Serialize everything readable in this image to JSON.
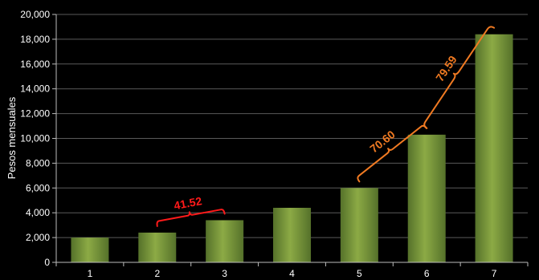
{
  "chart_data": {
    "type": "bar",
    "categories": [
      "1",
      "2",
      "3",
      "4",
      "5",
      "6",
      "7"
    ],
    "values": [
      2000,
      2400,
      3400,
      4400,
      6000,
      10300,
      18400
    ],
    "ylabel": "Pesos  mensuales",
    "xlabel": "",
    "ylim": [
      0,
      20000
    ],
    "yticks": [
      "0",
      "2,000",
      "4,000",
      "6,000",
      "8,000",
      "10,000",
      "12,000",
      "14,000",
      "16,000",
      "18,000",
      "20,000"
    ],
    "grid": true,
    "legend": "none",
    "colors": {
      "background": "#000000",
      "bar_light": "#8caa45",
      "bar_dark": "#55712a",
      "grid": "#5a5a5a",
      "text": "#ffffff"
    },
    "annotations": [
      {
        "label": "41.52",
        "from": "2",
        "to": "3",
        "color": "#ff1a1a"
      },
      {
        "label": "70.60",
        "from": "5",
        "to": "6",
        "color": "#f07a22"
      },
      {
        "label": "79.59",
        "from": "6",
        "to": "7",
        "color": "#f07a22"
      }
    ]
  }
}
